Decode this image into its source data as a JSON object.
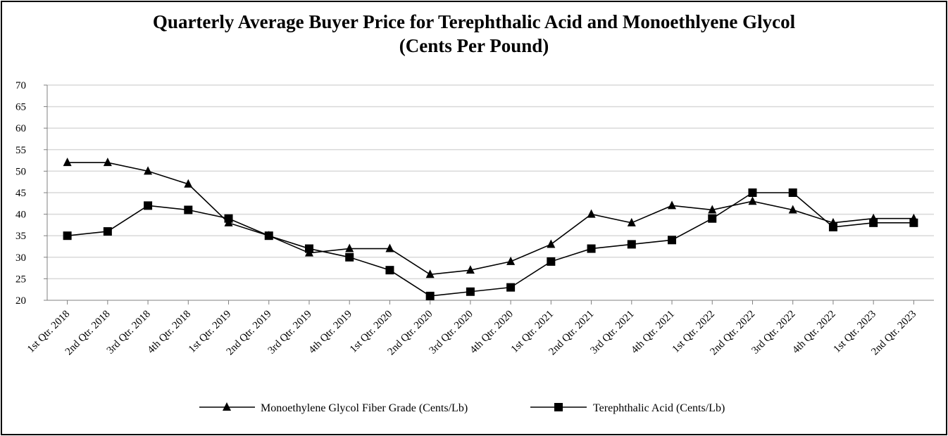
{
  "chart_data": {
    "type": "line",
    "title": "Quarterly Average Buyer Price for Terephthalic Acid and Monoethlyene Glycol",
    "subtitle": "(Cents Per Pound)",
    "xlabel": "",
    "ylabel": "",
    "ylim": [
      20,
      70
    ],
    "ytick_step": 5,
    "grid": true,
    "legend_position": "bottom",
    "categories": [
      "1st Qtr. 2018",
      "2nd Qtr. 2018",
      "3rd Qtr. 2018",
      "4th Qtr. 2018",
      "1st Qtr. 2019",
      "2nd Qtr. 2019",
      "3rd Qtr. 2019",
      "4th Qtr. 2019",
      "1st Qtr. 2020",
      "2nd Qtr. 2020",
      "3rd Qtr. 2020",
      "4th Qtr. 2020",
      "1st Qtr. 2021",
      "2nd Qtr. 2021",
      "3rd Qtr. 2021",
      "4th Qtr. 2021",
      "1st Qtr. 2022",
      "2nd Qtr. 2022",
      "3rd Qtr. 2022",
      "4th Qtr. 2022",
      "1st Qtr. 2023",
      "2nd Qtr. 2023"
    ],
    "series": [
      {
        "name": "Monoethylene Glycol Fiber Grade (Cents/Lb)",
        "marker": "triangle",
        "values": [
          52,
          52,
          50,
          47,
          38,
          35,
          31,
          32,
          32,
          26,
          27,
          29,
          33,
          40,
          38,
          42,
          41,
          43,
          41,
          38,
          39,
          39
        ]
      },
      {
        "name": "Terephthalic Acid (Cents/Lb)",
        "marker": "square",
        "values": [
          35,
          36,
          42,
          41,
          39,
          35,
          32,
          30,
          27,
          21,
          22,
          23,
          29,
          32,
          33,
          34,
          39,
          45,
          45,
          37,
          38,
          38
        ]
      }
    ]
  }
}
